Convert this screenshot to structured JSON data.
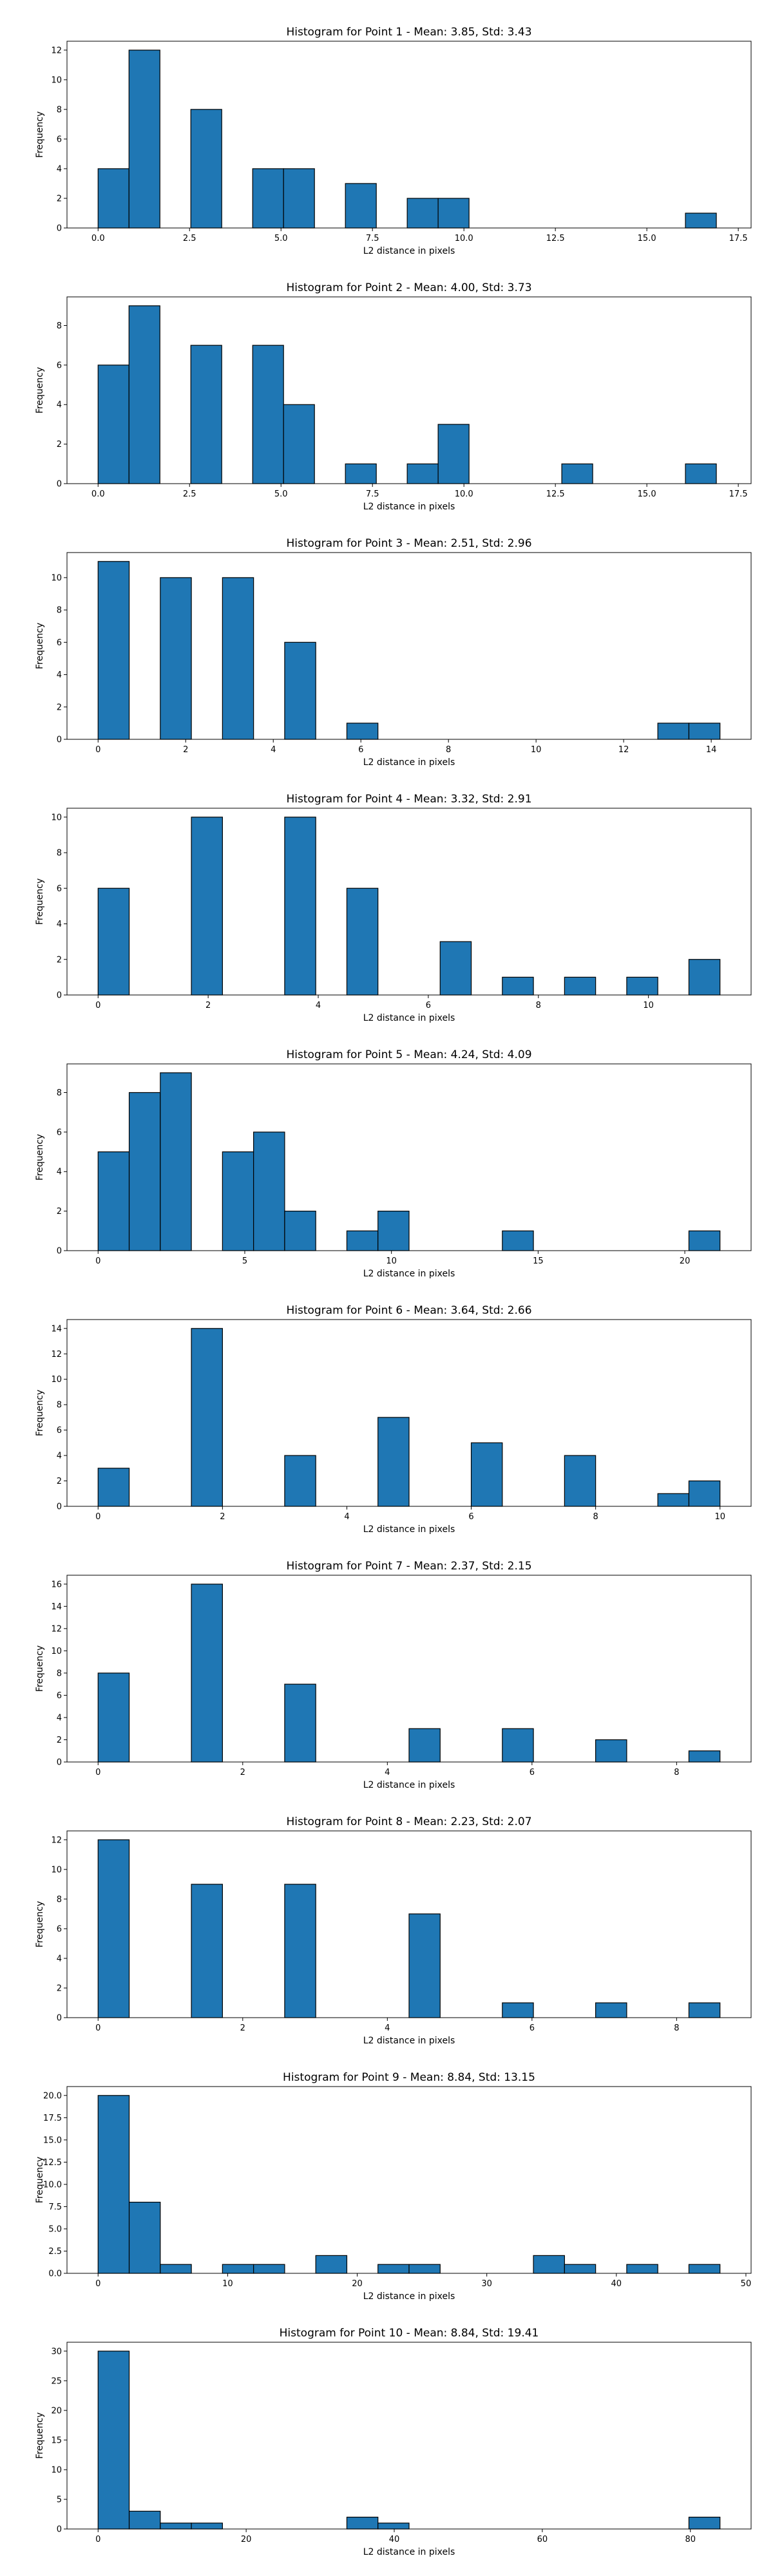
{
  "chart_data": [
    {
      "type": "bar",
      "title": "Histogram for Point 1 - Mean: 3.85, Std: 3.43",
      "xlabel": "L2 distance in pixels",
      "ylabel": "Frequency",
      "xlim": [
        -0.85,
        17.85
      ],
      "ylim": [
        0,
        12.6
      ],
      "xticks": [
        0,
        2.5,
        5,
        7.5,
        10,
        12.5,
        15,
        17.5
      ],
      "xtick_labels": [
        "0.0",
        "2.5",
        "5.0",
        "7.5",
        "10.0",
        "12.5",
        "15.0",
        "17.5"
      ],
      "yticks": [
        0,
        2,
        4,
        6,
        8,
        10,
        12
      ],
      "ytick_labels": [
        "0",
        "2",
        "4",
        "6",
        "8",
        "10",
        "12"
      ],
      "bin_start": 0,
      "bin_width": 0.845,
      "counts": [
        4,
        12,
        0,
        8,
        0,
        4,
        4,
        0,
        3,
        0,
        2,
        2,
        0,
        0,
        0,
        0,
        0,
        0,
        0,
        1
      ]
    },
    {
      "type": "bar",
      "title": "Histogram for Point 2 - Mean: 4.00, Std: 3.73",
      "xlabel": "L2 distance in pixels",
      "ylabel": "Frequency",
      "xlim": [
        -0.85,
        17.85
      ],
      "ylim": [
        0,
        9.45
      ],
      "xticks": [
        0,
        2.5,
        5,
        7.5,
        10,
        12.5,
        15,
        17.5
      ],
      "xtick_labels": [
        "0.0",
        "2.5",
        "5.0",
        "7.5",
        "10.0",
        "12.5",
        "15.0",
        "17.5"
      ],
      "yticks": [
        0,
        2,
        4,
        6,
        8
      ],
      "ytick_labels": [
        "0",
        "2",
        "4",
        "6",
        "8"
      ],
      "bin_start": 0,
      "bin_width": 0.845,
      "counts": [
        6,
        9,
        0,
        7,
        0,
        7,
        4,
        0,
        1,
        0,
        1,
        3,
        0,
        0,
        0,
        1,
        0,
        0,
        0,
        1
      ]
    },
    {
      "type": "bar",
      "title": "Histogram for Point 3 - Mean: 2.51, Std: 2.96",
      "xlabel": "L2 distance in pixels",
      "ylabel": "Frequency",
      "xlim": [
        -0.71,
        14.91
      ],
      "ylim": [
        0,
        11.55
      ],
      "xticks": [
        0,
        2,
        4,
        6,
        8,
        10,
        12,
        14
      ],
      "xtick_labels": [
        "0",
        "2",
        "4",
        "6",
        "8",
        "10",
        "12",
        "14"
      ],
      "yticks": [
        0,
        2,
        4,
        6,
        8,
        10
      ],
      "ytick_labels": [
        "0",
        "2",
        "4",
        "6",
        "8",
        "10"
      ],
      "bin_start": 0,
      "bin_width": 0.71,
      "counts": [
        11,
        0,
        10,
        0,
        10,
        0,
        6,
        0,
        1,
        0,
        0,
        0,
        0,
        0,
        0,
        0,
        0,
        0,
        1,
        1
      ]
    },
    {
      "type": "bar",
      "title": "Histogram for Point 4 - Mean: 3.32, Std: 2.91",
      "xlabel": "L2 distance in pixels",
      "ylabel": "Frequency",
      "xlim": [
        -0.565,
        11.865
      ],
      "ylim": [
        0,
        10.5
      ],
      "xticks": [
        0,
        2,
        4,
        6,
        8,
        10
      ],
      "xtick_labels": [
        "0",
        "2",
        "4",
        "6",
        "8",
        "10"
      ],
      "yticks": [
        0,
        2,
        4,
        6,
        8,
        10
      ],
      "ytick_labels": [
        "0",
        "2",
        "4",
        "6",
        "8",
        "10"
      ],
      "bin_start": 0,
      "bin_width": 0.565,
      "counts": [
        6,
        0,
        0,
        10,
        0,
        0,
        10,
        0,
        6,
        0,
        0,
        3,
        0,
        1,
        0,
        1,
        0,
        1,
        0,
        2
      ]
    },
    {
      "type": "bar",
      "title": "Histogram for Point 5 - Mean: 4.24, Std: 4.09",
      "xlabel": "L2 distance in pixels",
      "ylabel": "Frequency",
      "xlim": [
        -1.06,
        22.26
      ],
      "ylim": [
        0,
        9.45
      ],
      "xticks": [
        0,
        5,
        10,
        15,
        20
      ],
      "xtick_labels": [
        "0",
        "5",
        "10",
        "15",
        "20"
      ],
      "yticks": [
        0,
        2,
        4,
        6,
        8
      ],
      "ytick_labels": [
        "0",
        "2",
        "4",
        "6",
        "8"
      ],
      "bin_start": 0,
      "bin_width": 1.06,
      "counts": [
        5,
        8,
        9,
        0,
        5,
        6,
        2,
        0,
        1,
        2,
        0,
        0,
        0,
        1,
        0,
        0,
        0,
        0,
        0,
        1
      ]
    },
    {
      "type": "bar",
      "title": "Histogram for Point 6 - Mean: 3.64, Std: 2.66",
      "xlabel": "L2 distance in pixels",
      "ylabel": "Frequency",
      "xlim": [
        -0.5,
        10.5
      ],
      "ylim": [
        0,
        14.7
      ],
      "xticks": [
        0,
        2,
        4,
        6,
        8,
        10
      ],
      "xtick_labels": [
        "0",
        "2",
        "4",
        "6",
        "8",
        "10"
      ],
      "yticks": [
        0,
        2,
        4,
        6,
        8,
        10,
        12,
        14
      ],
      "ytick_labels": [
        "0",
        "2",
        "4",
        "6",
        "8",
        "10",
        "12",
        "14"
      ],
      "bin_start": 0,
      "bin_width": 0.5,
      "counts": [
        3,
        0,
        0,
        14,
        0,
        0,
        4,
        0,
        0,
        7,
        0,
        0,
        5,
        0,
        0,
        4,
        0,
        0,
        1,
        2
      ]
    },
    {
      "type": "bar",
      "title": "Histogram for Point 7 - Mean: 2.37, Std: 2.15",
      "xlabel": "L2 distance in pixels",
      "ylabel": "Frequency",
      "xlim": [
        -0.43,
        9.03
      ],
      "ylim": [
        0,
        16.8
      ],
      "xticks": [
        0,
        2,
        4,
        6,
        8
      ],
      "xtick_labels": [
        "0",
        "2",
        "4",
        "6",
        "8"
      ],
      "yticks": [
        0,
        2,
        4,
        6,
        8,
        10,
        12,
        14,
        16
      ],
      "ytick_labels": [
        "0",
        "2",
        "4",
        "6",
        "8",
        "10",
        "12",
        "14",
        "16"
      ],
      "bin_start": 0,
      "bin_width": 0.43,
      "counts": [
        8,
        0,
        0,
        16,
        0,
        0,
        7,
        0,
        0,
        0,
        3,
        0,
        0,
        3,
        0,
        0,
        2,
        0,
        0,
        1
      ]
    },
    {
      "type": "bar",
      "title": "Histogram for Point 8 - Mean: 2.23, Std: 2.07",
      "xlabel": "L2 distance in pixels",
      "ylabel": "Frequency",
      "xlim": [
        -0.43,
        9.03
      ],
      "ylim": [
        0,
        12.6
      ],
      "xticks": [
        0,
        2,
        4,
        6,
        8
      ],
      "xtick_labels": [
        "0",
        "2",
        "4",
        "6",
        "8"
      ],
      "yticks": [
        0,
        2,
        4,
        6,
        8,
        10,
        12
      ],
      "ytick_labels": [
        "0",
        "2",
        "4",
        "6",
        "8",
        "10",
        "12"
      ],
      "bin_start": 0,
      "bin_width": 0.43,
      "counts": [
        12,
        0,
        0,
        9,
        0,
        0,
        9,
        0,
        0,
        0,
        7,
        0,
        0,
        1,
        0,
        0,
        1,
        0,
        0,
        1
      ]
    },
    {
      "type": "bar",
      "title": "Histogram for Point 9 - Mean: 8.84, Std: 13.15",
      "xlabel": "L2 distance in pixels",
      "ylabel": "Frequency",
      "xlim": [
        -2.4,
        50.4
      ],
      "ylim": [
        0,
        21.0
      ],
      "xticks": [
        0,
        10,
        20,
        30,
        40,
        50
      ],
      "xtick_labels": [
        "0",
        "10",
        "20",
        "30",
        "40",
        "50"
      ],
      "yticks": [
        0,
        2.5,
        5,
        7.5,
        10,
        12.5,
        15,
        17.5,
        20
      ],
      "ytick_labels": [
        "0.0",
        "2.5",
        "5.0",
        "7.5",
        "10.0",
        "12.5",
        "15.0",
        "17.5",
        "20.0"
      ],
      "bin_start": 0,
      "bin_width": 2.4,
      "counts": [
        20,
        8,
        1,
        0,
        1,
        1,
        0,
        2,
        0,
        1,
        1,
        0,
        0,
        0,
        2,
        1,
        0,
        1,
        0,
        1
      ]
    },
    {
      "type": "bar",
      "title": "Histogram for Point 10 - Mean: 8.84, Std: 19.41",
      "xlabel": "L2 distance in pixels",
      "ylabel": "Frequency",
      "xlim": [
        -4.2,
        88.2
      ],
      "ylim": [
        0,
        31.5
      ],
      "xticks": [
        0,
        20,
        40,
        60,
        80
      ],
      "xtick_labels": [
        "0",
        "20",
        "40",
        "60",
        "80"
      ],
      "yticks": [
        0,
        5,
        10,
        15,
        20,
        25,
        30
      ],
      "ytick_labels": [
        "0",
        "5",
        "10",
        "15",
        "20",
        "25",
        "30"
      ],
      "bin_start": 0,
      "bin_width": 4.2,
      "counts": [
        30,
        3,
        1,
        1,
        0,
        0,
        0,
        0,
        2,
        1,
        0,
        0,
        0,
        0,
        0,
        0,
        0,
        0,
        0,
        2
      ]
    }
  ],
  "colors": {
    "bar_fill": "#1f77b4",
    "bar_edge": "#000000",
    "background": "#ffffff"
  }
}
